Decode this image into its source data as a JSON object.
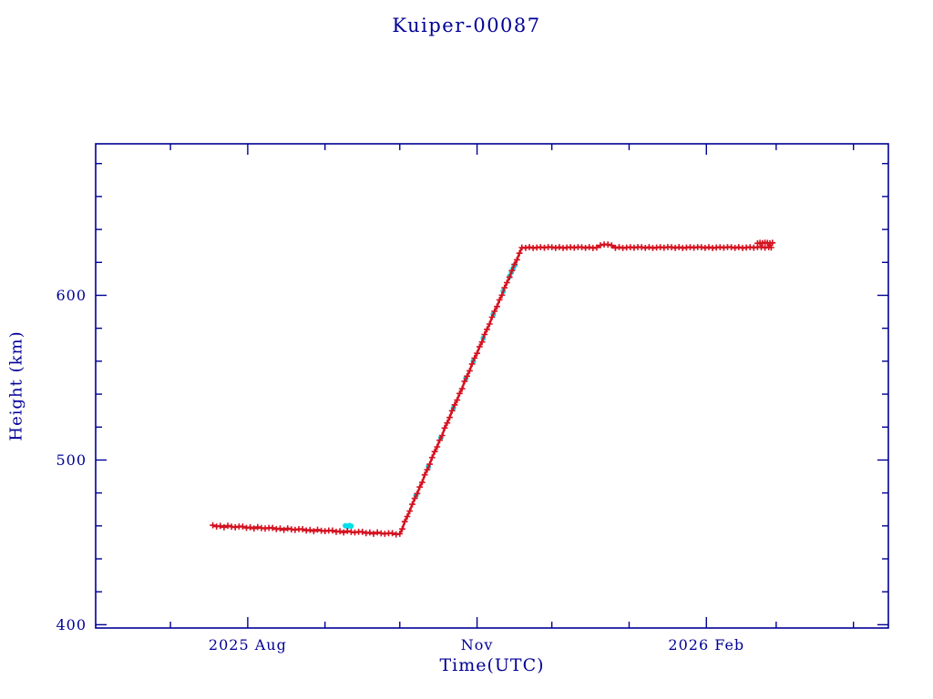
{
  "chart_data": {
    "type": "scatter",
    "title": "Kuiper-00087",
    "xlabel": "Time(UTC)",
    "ylabel": "Height (km)",
    "x_unit": "days since 2025-06-01 UTC",
    "xlim": [
      0,
      318
    ],
    "ylim": [
      398,
      692
    ],
    "grid": false,
    "legend": "none",
    "colors": {
      "axis": "#000096",
      "red": "#d51220",
      "cyan": "#00dfea",
      "background": "#ffffff"
    },
    "x_major_ticks": [
      {
        "value": 61,
        "label": "2025 Aug"
      },
      {
        "value": 153,
        "label": "Nov"
      },
      {
        "value": 245,
        "label": "2026 Feb"
      }
    ],
    "x_minor_ticks": [
      30,
      92,
      122,
      183,
      214,
      273,
      304
    ],
    "y_major_ticks": [
      {
        "value": 400,
        "label": "400"
      },
      {
        "value": 500,
        "label": "500"
      },
      {
        "value": 600,
        "label": "600"
      }
    ],
    "y_minor_ticks": [
      420,
      440,
      460,
      480,
      520,
      540,
      560,
      580,
      620,
      640,
      660,
      680
    ],
    "series": [
      {
        "name": "gp-observations",
        "marker": "dot",
        "color": "#00dfea",
        "connect": false,
        "points": [
          [
            100.2,
            460.1
          ],
          [
            101,
            459.7
          ],
          [
            101.8,
            460.2
          ],
          [
            102.5,
            459.9
          ],
          [
            128.5,
            478.5
          ],
          [
            133.5,
            496.0
          ],
          [
            138.5,
            513.5
          ],
          [
            143.5,
            531.5
          ],
          [
            148.5,
            549.5
          ],
          [
            151.5,
            560.0
          ],
          [
            155.5,
            574.0
          ],
          [
            159.5,
            588.5
          ],
          [
            163.5,
            602.5
          ],
          [
            166,
            611.5
          ],
          [
            166.8,
            614.0
          ],
          [
            167.5,
            616.5
          ],
          [
            168.2,
            618.5
          ]
        ]
      },
      {
        "name": "height-history",
        "marker": "plus",
        "color": "#d51220",
        "connect": true,
        "points": [
          [
            47,
            460.4
          ],
          [
            48.5,
            459.6
          ],
          [
            50,
            460.0
          ],
          [
            51.5,
            459.2
          ],
          [
            53,
            460.1
          ],
          [
            54.5,
            459.5
          ],
          [
            56,
            459.2
          ],
          [
            57.5,
            459.6
          ],
          [
            59,
            459.6
          ],
          [
            60.5,
            458.8
          ],
          [
            62,
            459.2
          ],
          [
            63.5,
            458.4
          ],
          [
            65,
            459.3
          ],
          [
            66.5,
            458.7
          ],
          [
            68,
            458.4
          ],
          [
            69.5,
            458.8
          ],
          [
            71,
            458.8
          ],
          [
            72.5,
            458.0
          ],
          [
            74,
            458.4
          ],
          [
            75.5,
            457.6
          ],
          [
            77,
            458.5
          ],
          [
            78.5,
            457.9
          ],
          [
            80,
            457.6
          ],
          [
            81.5,
            458.0
          ],
          [
            83,
            458.0
          ],
          [
            84.5,
            457.2
          ],
          [
            86,
            457.6
          ],
          [
            87.5,
            456.8
          ],
          [
            89,
            457.7
          ],
          [
            90.5,
            457.1
          ],
          [
            92,
            456.8
          ],
          [
            93.5,
            457.2
          ],
          [
            95,
            457.2
          ],
          [
            96.5,
            456.4
          ],
          [
            98,
            456.8
          ],
          [
            99.5,
            456.0
          ],
          [
            101,
            456.9
          ],
          [
            102.5,
            456.3
          ],
          [
            104,
            456.0
          ],
          [
            105.5,
            456.4
          ],
          [
            107,
            456.4
          ],
          [
            108.5,
            455.6
          ],
          [
            110,
            456.0
          ],
          [
            111.5,
            455.2
          ],
          [
            113,
            456.1
          ],
          [
            114.5,
            455.5
          ],
          [
            116,
            455.2
          ],
          [
            117.5,
            455.6
          ],
          [
            119,
            455.6
          ],
          [
            120.5,
            454.8
          ],
          [
            122,
            455.2
          ],
          [
            123,
            458.1
          ],
          [
            124,
            462.6
          ],
          [
            125,
            465.7
          ],
          [
            126,
            469.0
          ],
          [
            127,
            473.1
          ],
          [
            128,
            476.7
          ],
          [
            129,
            479.6
          ],
          [
            130,
            483.6
          ],
          [
            131,
            486.5
          ],
          [
            132,
            491.0
          ],
          [
            133,
            494.1
          ],
          [
            134,
            497.4
          ],
          [
            135,
            501.5
          ],
          [
            136,
            505.1
          ],
          [
            137,
            508.0
          ],
          [
            138,
            512.0
          ],
          [
            139,
            514.9
          ],
          [
            140,
            519.4
          ],
          [
            141,
            522.5
          ],
          [
            142,
            525.8
          ],
          [
            143,
            529.9
          ],
          [
            144,
            533.5
          ],
          [
            145,
            536.4
          ],
          [
            146,
            540.4
          ],
          [
            147,
            543.3
          ],
          [
            148,
            547.8
          ],
          [
            149,
            550.9
          ],
          [
            150,
            554.2
          ],
          [
            151,
            558.3
          ],
          [
            152,
            561.9
          ],
          [
            153,
            564.8
          ],
          [
            154,
            568.8
          ],
          [
            155,
            571.7
          ],
          [
            156,
            576.2
          ],
          [
            157,
            579.3
          ],
          [
            158,
            582.6
          ],
          [
            159,
            586.7
          ],
          [
            160,
            590.3
          ],
          [
            161,
            593.2
          ],
          [
            162,
            597.2
          ],
          [
            163,
            600.1
          ],
          [
            164,
            604.6
          ],
          [
            165,
            607.7
          ],
          [
            166,
            611.0
          ],
          [
            167,
            615.1
          ],
          [
            168,
            618.7
          ],
          [
            169,
            621.6
          ],
          [
            170,
            625.6
          ],
          [
            171,
            629.0
          ],
          [
            172.5,
            628.8
          ],
          [
            174,
            629.3
          ],
          [
            175.5,
            628.7
          ],
          [
            177,
            629.0
          ],
          [
            178.5,
            629.2
          ],
          [
            180,
            628.9
          ],
          [
            181.5,
            629.3
          ],
          [
            183,
            629.2
          ],
          [
            184.5,
            628.8
          ],
          [
            186,
            629.3
          ],
          [
            187.5,
            628.7
          ],
          [
            189,
            629.0
          ],
          [
            190.5,
            629.2
          ],
          [
            192,
            628.9
          ],
          [
            193.5,
            629.3
          ],
          [
            195,
            629.2
          ],
          [
            196.5,
            628.8
          ],
          [
            198,
            629.3
          ],
          [
            199.5,
            628.7
          ],
          [
            201,
            629.0
          ],
          [
            202.5,
            630.4
          ],
          [
            204,
            630.9
          ],
          [
            205.5,
            630.8
          ],
          [
            207,
            630.3
          ],
          [
            208.5,
            628.8
          ],
          [
            210,
            629.3
          ],
          [
            211.5,
            628.7
          ],
          [
            213,
            629.0
          ],
          [
            214.5,
            629.2
          ],
          [
            216,
            628.9
          ],
          [
            217.5,
            629.3
          ],
          [
            219,
            629.2
          ],
          [
            220.5,
            628.8
          ],
          [
            222,
            629.3
          ],
          [
            223.5,
            628.7
          ],
          [
            225,
            629.0
          ],
          [
            226.5,
            629.2
          ],
          [
            228,
            628.9
          ],
          [
            229.5,
            629.3
          ],
          [
            231,
            629.2
          ],
          [
            232.5,
            628.8
          ],
          [
            234,
            629.3
          ],
          [
            235.5,
            628.7
          ],
          [
            237,
            629.0
          ],
          [
            238.5,
            629.2
          ],
          [
            240,
            628.9
          ],
          [
            241.5,
            629.3
          ],
          [
            243,
            629.2
          ],
          [
            244.5,
            628.8
          ],
          [
            246,
            629.3
          ],
          [
            247.5,
            628.7
          ],
          [
            249,
            629.0
          ],
          [
            250.5,
            629.2
          ],
          [
            252,
            628.9
          ],
          [
            253.5,
            629.3
          ],
          [
            255,
            629.2
          ],
          [
            256.5,
            628.8
          ],
          [
            258,
            629.3
          ],
          [
            259.5,
            628.7
          ],
          [
            261,
            629.0
          ],
          [
            262.5,
            629.2
          ],
          [
            264,
            628.9
          ],
          [
            265.5,
            629.3
          ],
          [
            267,
            629.2
          ],
          [
            268.5,
            628.9
          ],
          [
            270,
            629.2
          ],
          [
            271,
            629.0
          ]
        ]
      },
      {
        "name": "height-history-tail",
        "marker": "plus",
        "color": "#d51220",
        "connect": true,
        "points": [
          [
            265.5,
            631.6
          ],
          [
            266.5,
            631.9
          ],
          [
            267.5,
            631.7
          ],
          [
            268.5,
            632.0
          ],
          [
            269.5,
            631.8
          ],
          [
            270.5,
            631.6
          ],
          [
            271.5,
            631.9
          ]
        ]
      }
    ]
  }
}
